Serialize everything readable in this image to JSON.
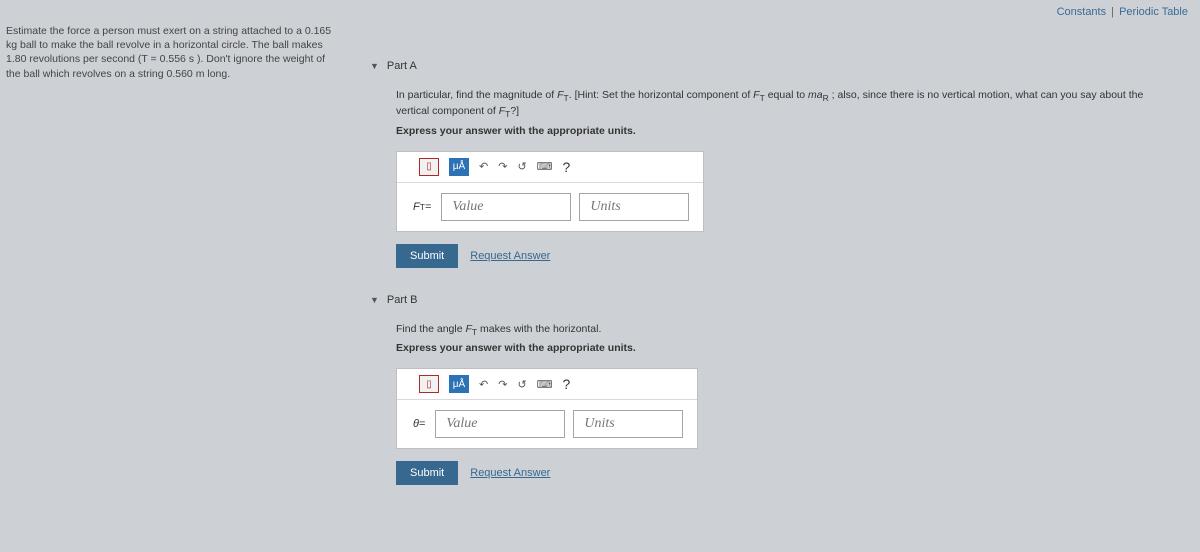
{
  "topLinks": {
    "constants": "Constants",
    "sep": "|",
    "periodic": "Periodic Table"
  },
  "problem": {
    "text": "Estimate the force a person must exert on a string attached to a 0.165 kg ball to make the ball revolve in a horizontal circle. The ball makes 1.80 revolutions per second (T = 0.556 s ). Don't ignore the weight of the ball which revolves on a string 0.560 m long."
  },
  "parts": [
    {
      "title": "Part A",
      "instruction_prefix": "In particular, find the magnitude of ",
      "instruction_var1": "F",
      "instruction_sub1": "T",
      "instruction_mid1": ". [Hint: Set the horizontal component of ",
      "instruction_var2": "F",
      "instruction_sub2": "T",
      "instruction_mid2": " equal to ",
      "instruction_var3": "ma",
      "instruction_sub3": "R",
      "instruction_mid3": " ; also, since there is no vertical motion, what can you say about the vertical component of ",
      "instruction_var4": "F",
      "instruction_sub4": "T",
      "instruction_suffix": "?]",
      "express": "Express your answer with the appropriate units.",
      "eq_lhs_sym": "F",
      "eq_lhs_sub": "T",
      "eq_lhs_suffix": " =",
      "value_placeholder": "Value",
      "units_placeholder": "Units",
      "submit": "Submit",
      "request": "Request Answer",
      "toolbar": {
        "template": "▯",
        "mu": "μÅ",
        "undo": "↶",
        "redo": "↷",
        "reset": "↺",
        "keyboard": "⌨",
        "help": "?"
      }
    },
    {
      "title": "Part B",
      "instruction_prefix": "Find the angle ",
      "instruction_var1": "F",
      "instruction_sub1": "T",
      "instruction_suffix": " makes with the horizontal.",
      "express": "Express your answer with the appropriate units.",
      "eq_lhs_sym": "θ",
      "eq_lhs_sub": "",
      "eq_lhs_suffix": " =",
      "value_placeholder": "Value",
      "units_placeholder": "Units",
      "submit": "Submit",
      "request": "Request Answer",
      "toolbar": {
        "template": "▯",
        "mu": "μÅ",
        "undo": "↶",
        "redo": "↷",
        "reset": "↺",
        "keyboard": "⌨",
        "help": "?"
      }
    }
  ]
}
